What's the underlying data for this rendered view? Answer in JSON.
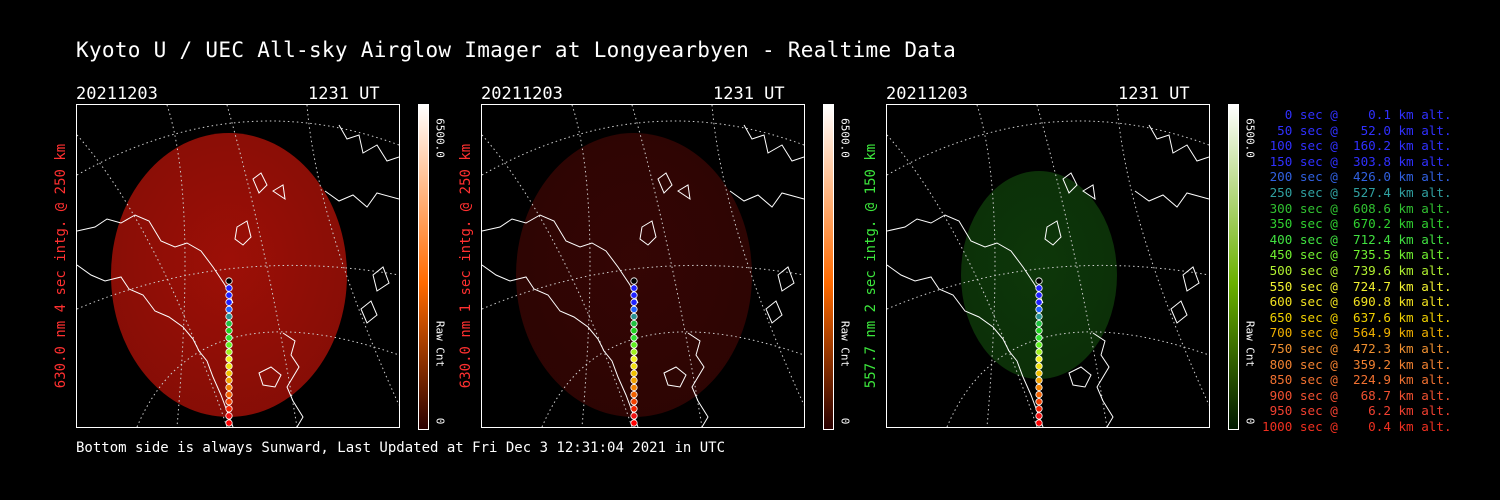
{
  "title": "Kyoto U / UEC All-sky Airglow Imager at Longyearbyen - Realtime Data",
  "footer": "Bottom side is always Sunward, Last Updated at Fri Dec  3 12:31:04 2021 in UTC",
  "panels": [
    {
      "date": "20211203",
      "time": "1231 UT",
      "side_label": "630.0 nm 4 sec intg. @ 250 km",
      "label_color": "#ff3030",
      "glow_color": "#b81208",
      "glow_opacity": 0.85,
      "glow_rx": 118,
      "glow_ry": 142,
      "cbar_top": "#ffffff",
      "cbar_mid": "#ff6a00",
      "cbar_bot": "#2a0000",
      "cbar_max": "6500.0",
      "cbar_min": "0",
      "cbar_label": "Raw Cnt"
    },
    {
      "date": "20211203",
      "time": "1231 UT",
      "side_label": "630.0 nm 1 sec intg. @ 250 km",
      "label_color": "#ff3030",
      "glow_color": "#3a0604",
      "glow_opacity": 0.9,
      "glow_rx": 118,
      "glow_ry": 142,
      "cbar_top": "#ffffff",
      "cbar_mid": "#ff6a00",
      "cbar_bot": "#2a0000",
      "cbar_max": "6500.0",
      "cbar_min": "0",
      "cbar_label": "Raw Cnt"
    },
    {
      "date": "20211203",
      "time": "1231 UT",
      "side_label": "557.7 nm 2 sec intg. @ 150 km",
      "label_color": "#3ce63c",
      "glow_color": "#0e3a0a",
      "glow_opacity": 0.95,
      "glow_rx": 78,
      "glow_ry": 104,
      "cbar_top": "#ffffff",
      "cbar_mid": "#6ab000",
      "cbar_bot": "#001800",
      "cbar_max": "6500.0",
      "cbar_min": "0",
      "cbar_label": "Raw Cnt"
    }
  ],
  "track_colors": [
    "#000000",
    "#2020ff",
    "#2020ff",
    "#2020ff",
    "#2060ff",
    "#2a9090",
    "#20c040",
    "#20d020",
    "#30e030",
    "#60f020",
    "#a0f020",
    "#f0f020",
    "#f0e010",
    "#f0c000",
    "#f0a000",
    "#f08000",
    "#f06000",
    "#f04000",
    "#f02000",
    "#f01010",
    "#ff0000"
  ],
  "legend_items": [
    {
      "text": "   0 sec @    0.1 km alt.",
      "color": "#3030ff"
    },
    {
      "text": "  50 sec @   52.0 km alt.",
      "color": "#3030ff"
    },
    {
      "text": " 100 sec @  160.2 km alt.",
      "color": "#3030ff"
    },
    {
      "text": " 150 sec @  303.8 km alt.",
      "color": "#3030ff"
    },
    {
      "text": " 200 sec @  426.0 km alt.",
      "color": "#3060e0"
    },
    {
      "text": " 250 sec @  527.4 km alt.",
      "color": "#30a0a0"
    },
    {
      "text": " 300 sec @  608.6 km alt.",
      "color": "#30c030"
    },
    {
      "text": " 350 sec @  670.2 km alt.",
      "color": "#30d030"
    },
    {
      "text": " 400 sec @  712.4 km alt.",
      "color": "#40e040"
    },
    {
      "text": " 450 sec @  735.5 km alt.",
      "color": "#70f030"
    },
    {
      "text": " 500 sec @  739.6 km alt.",
      "color": "#b0f030"
    },
    {
      "text": " 550 sec @  724.7 km alt.",
      "color": "#f0f030"
    },
    {
      "text": " 600 sec @  690.8 km alt.",
      "color": "#f0e020"
    },
    {
      "text": " 650 sec @  637.6 km alt.",
      "color": "#f0d000"
    },
    {
      "text": " 700 sec @  564.9 km alt.",
      "color": "#f0b000"
    },
    {
      "text": " 750 sec @  472.3 km alt.",
      "color": "#f09030"
    },
    {
      "text": " 800 sec @  359.2 km alt.",
      "color": "#f08030"
    },
    {
      "text": " 850 sec @  224.9 km alt.",
      "color": "#f07030"
    },
    {
      "text": " 900 sec @   68.7 km alt.",
      "color": "#f05030"
    },
    {
      "text": " 950 sec @    6.2 km alt.",
      "color": "#f04030"
    },
    {
      "text": "1000 sec @    0.4 km alt.",
      "color": "#f03020"
    }
  ]
}
